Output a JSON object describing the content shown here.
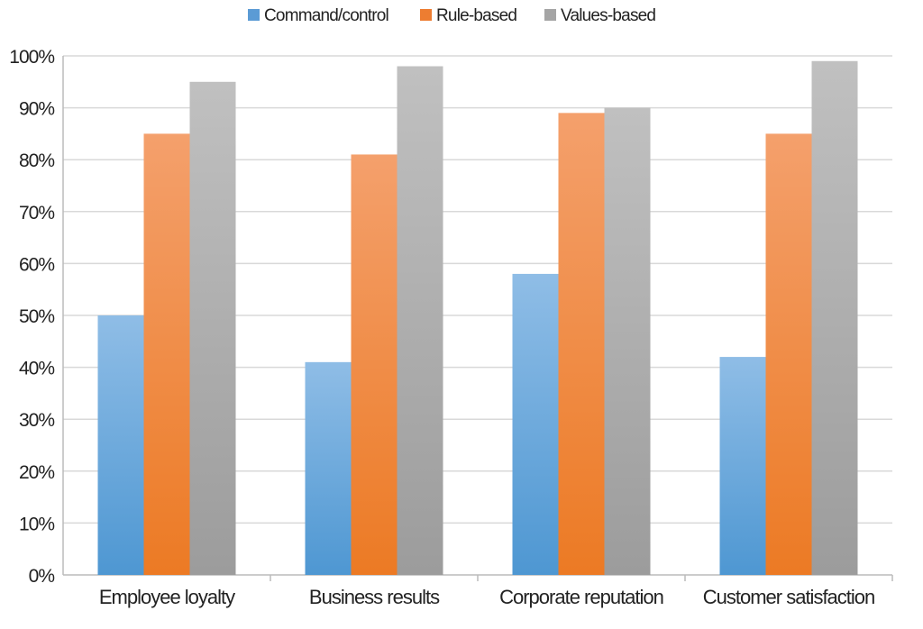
{
  "chart_data": {
    "type": "bar",
    "title": "",
    "xlabel": "",
    "ylabel": "",
    "categories": [
      "Employee loyalty",
      "Business results",
      "Corporate reputation",
      "Customer satisfaction"
    ],
    "series": [
      {
        "name": "Command/control",
        "color": "#5b9bd5",
        "values": [
          50,
          41,
          58,
          42
        ]
      },
      {
        "name": "Rule-based",
        "color": "#ed7d31",
        "values": [
          85,
          81,
          89,
          85
        ]
      },
      {
        "name": "Values-based",
        "color": "#a5a5a5",
        "values": [
          95,
          98,
          90,
          99
        ]
      }
    ],
    "ylim": [
      0,
      100
    ],
    "yticks": [
      "0%",
      "10%",
      "20%",
      "30%",
      "40%",
      "50%",
      "60%",
      "70%",
      "80%",
      "90%",
      "100%"
    ],
    "grid": true,
    "legend": "top"
  }
}
